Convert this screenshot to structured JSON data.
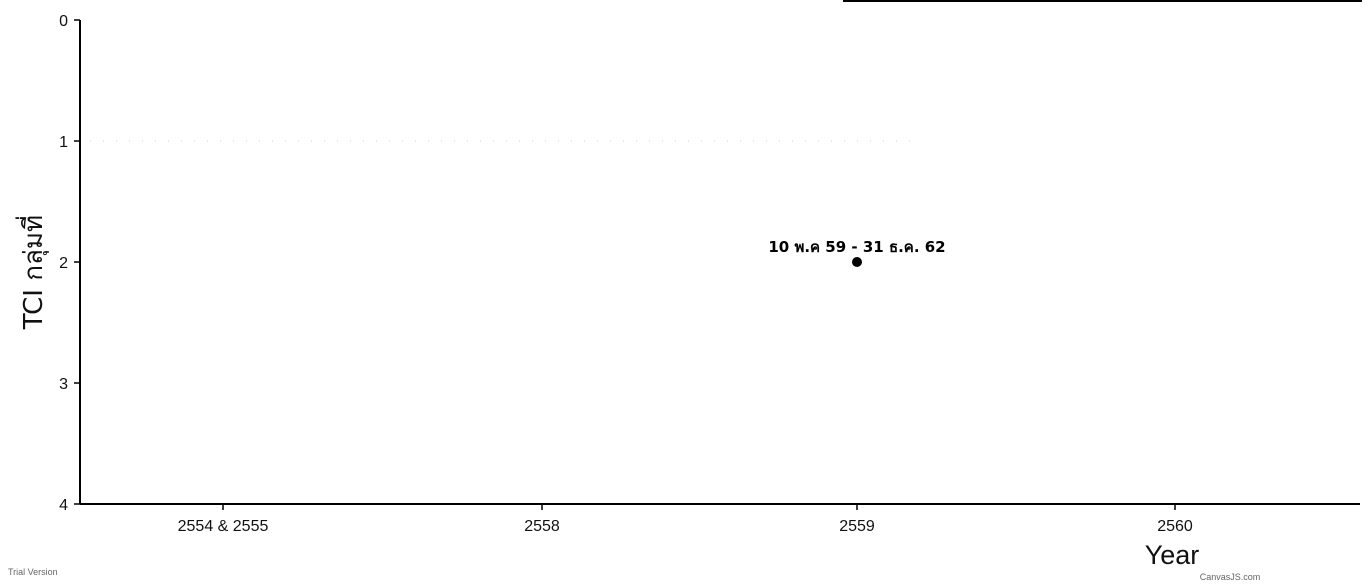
{
  "chart_data": {
    "type": "scatter",
    "title": "",
    "xlabel": "Year",
    "ylabel": "TCI กลุ่มที่",
    "x_categories": [
      "2554 & 2555",
      "2558",
      "2559",
      "2560"
    ],
    "y_ticks": [
      0,
      1,
      2,
      3,
      4
    ],
    "ylim": [
      0,
      4
    ],
    "y_inverted": true,
    "grid": "dotted horizontal at y=1",
    "points": [
      {
        "x": "2559",
        "y": 2,
        "label": "10 พ.ค 59 - 31 ธ.ค. 62"
      }
    ],
    "colors": {
      "axis": "#000000",
      "point": "#000000",
      "grid": "#cccccc"
    }
  },
  "footer": {
    "left_note": "Trial Version",
    "right_note": "CanvasJS.com"
  }
}
